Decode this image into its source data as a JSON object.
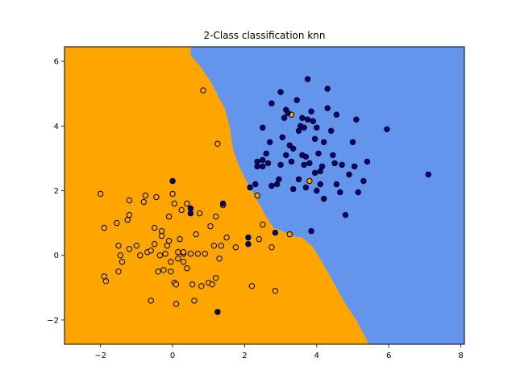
{
  "chart_data": {
    "type": "scatter",
    "title": "2-Class classification knn",
    "xlabel": "",
    "ylabel": "",
    "xlim": [
      -3.0,
      8.1
    ],
    "ylim": [
      -2.75,
      6.45
    ],
    "xticks": [
      -2,
      0,
      2,
      4,
      6,
      8
    ],
    "yticks": [
      -2,
      0,
      2,
      4,
      6
    ],
    "xtick_labels": [
      "−2",
      "0",
      "2",
      "4",
      "6",
      "8"
    ],
    "ytick_labels": [
      "−2",
      "0",
      "2",
      "4",
      "6"
    ],
    "grid": false,
    "legend": "none",
    "colors": {
      "region_class_0": "#ffa500",
      "region_class_1": "#6495ed",
      "point_class_0": "#ffa500",
      "point_class_1": "#00008b",
      "marker_edge": "#000000"
    },
    "decision_boundary": [
      [
        -1.7,
        6.45
      ],
      [
        0.5,
        6.45
      ],
      [
        0.5,
        6.2
      ],
      [
        0.8,
        5.8
      ],
      [
        1.1,
        5.3
      ],
      [
        1.3,
        4.85
      ],
      [
        1.45,
        4.55
      ],
      [
        1.6,
        3.9
      ],
      [
        1.65,
        3.45
      ],
      [
        1.7,
        3.2
      ],
      [
        1.85,
        2.75
      ],
      [
        2.0,
        2.4
      ],
      [
        2.2,
        2.0
      ],
      [
        2.4,
        1.6
      ],
      [
        2.6,
        1.2
      ],
      [
        2.8,
        0.85
      ],
      [
        3.05,
        0.75
      ],
      [
        3.3,
        0.6
      ],
      [
        3.6,
        0.55
      ],
      [
        3.9,
        0.25
      ],
      [
        4.2,
        -0.3
      ],
      [
        4.5,
        -0.9
      ],
      [
        4.8,
        -1.5
      ],
      [
        5.1,
        -2.0
      ],
      [
        5.45,
        -2.75
      ],
      [
        -3.0,
        -2.75
      ],
      [
        -3.0,
        6.45
      ]
    ],
    "series": [
      {
        "class": 0,
        "points": [
          [
            -2.0,
            1.9
          ],
          [
            -1.9,
            0.85
          ],
          [
            -1.9,
            -0.65
          ],
          [
            -1.85,
            -0.8
          ],
          [
            -1.55,
            1.0
          ],
          [
            -1.5,
            0.3
          ],
          [
            -1.45,
            0.0
          ],
          [
            -1.4,
            -0.2
          ],
          [
            -1.5,
            -0.5
          ],
          [
            -1.25,
            1.1
          ],
          [
            -1.2,
            1.25
          ],
          [
            -1.2,
            0.2
          ],
          [
            -1.2,
            1.7
          ],
          [
            -1.0,
            0.3
          ],
          [
            -0.9,
            0.0
          ],
          [
            -0.8,
            1.65
          ],
          [
            -0.75,
            1.85
          ],
          [
            -0.7,
            0.1
          ],
          [
            -0.6,
            0.15
          ],
          [
            -0.6,
            -1.4
          ],
          [
            -0.5,
            0.35
          ],
          [
            -0.5,
            0.85
          ],
          [
            -0.45,
            1.8
          ],
          [
            -0.4,
            -0.5
          ],
          [
            -0.35,
            0.0
          ],
          [
            -0.3,
            0.75
          ],
          [
            -0.3,
            0.6
          ],
          [
            -0.25,
            -0.45
          ],
          [
            -0.2,
            0.05
          ],
          [
            -0.1,
            1.2
          ],
          [
            -0.1,
            0.45
          ],
          [
            -0.05,
            -0.2
          ],
          [
            -0.05,
            -0.5
          ],
          [
            0.0,
            1.9
          ],
          [
            0.05,
            1.6
          ],
          [
            0.05,
            -0.85
          ],
          [
            0.1,
            -0.9
          ],
          [
            0.1,
            -1.5
          ],
          [
            0.15,
            0.1
          ],
          [
            0.15,
            -0.1
          ],
          [
            0.2,
            0.5
          ],
          [
            0.25,
            1.4
          ],
          [
            0.3,
            -0.2
          ],
          [
            0.3,
            0.05
          ],
          [
            0.4,
            1.6
          ],
          [
            0.4,
            -0.4
          ],
          [
            0.5,
            0.05
          ],
          [
            0.55,
            -0.9
          ],
          [
            0.6,
            -1.4
          ],
          [
            0.65,
            0.65
          ],
          [
            0.7,
            0.05
          ],
          [
            0.75,
            1.3
          ],
          [
            0.8,
            -0.95
          ],
          [
            0.85,
            5.1
          ],
          [
            0.9,
            0.05
          ],
          [
            1.0,
            -0.85
          ],
          [
            1.05,
            0.9
          ],
          [
            1.1,
            -0.9
          ],
          [
            1.15,
            0.3
          ],
          [
            1.2,
            1.2
          ],
          [
            1.2,
            -0.7
          ],
          [
            1.25,
            3.45
          ],
          [
            1.3,
            -0.1
          ],
          [
            1.35,
            0.3
          ],
          [
            1.4,
            1.55
          ],
          [
            1.5,
            0.55
          ],
          [
            1.75,
            0.25
          ],
          [
            2.2,
            -0.95
          ],
          [
            2.35,
            1.85
          ],
          [
            2.4,
            0.5
          ],
          [
            2.5,
            0.95
          ],
          [
            2.75,
            0.25
          ],
          [
            2.85,
            -1.1
          ],
          [
            3.25,
            0.65
          ],
          [
            3.3,
            4.35
          ],
          [
            3.8,
            2.3
          ],
          [
            0.3,
            0.1
          ],
          [
            -0.15,
            0.3
          ]
        ]
      },
      {
        "class": 1,
        "points": [
          [
            0.0,
            2.3
          ],
          [
            0.5,
            1.45
          ],
          [
            0.5,
            1.3
          ],
          [
            1.4,
            1.6
          ],
          [
            1.25,
            -1.75
          ],
          [
            2.1,
            0.55
          ],
          [
            2.1,
            0.35
          ],
          [
            2.15,
            2.1
          ],
          [
            2.3,
            2.2
          ],
          [
            2.35,
            2.9
          ],
          [
            2.35,
            2.75
          ],
          [
            2.5,
            2.95
          ],
          [
            2.5,
            2.75
          ],
          [
            2.5,
            3.95
          ],
          [
            2.6,
            3.15
          ],
          [
            2.65,
            2.85
          ],
          [
            2.7,
            3.5
          ],
          [
            2.75,
            4.7
          ],
          [
            2.75,
            2.15
          ],
          [
            2.85,
            0.7
          ],
          [
            2.9,
            2.2
          ],
          [
            2.95,
            2.35
          ],
          [
            3.0,
            2.8
          ],
          [
            3.0,
            5.05
          ],
          [
            3.05,
            3.65
          ],
          [
            3.1,
            4.25
          ],
          [
            3.15,
            4.5
          ],
          [
            3.15,
            3.1
          ],
          [
            3.2,
            4.4
          ],
          [
            3.25,
            3.4
          ],
          [
            3.3,
            2.9
          ],
          [
            3.35,
            3.3
          ],
          [
            3.35,
            2.05
          ],
          [
            3.45,
            4.8
          ],
          [
            3.5,
            3.85
          ],
          [
            3.5,
            2.35
          ],
          [
            3.55,
            4.0
          ],
          [
            3.6,
            3.1
          ],
          [
            3.6,
            4.25
          ],
          [
            3.65,
            2.8
          ],
          [
            3.65,
            3.95
          ],
          [
            3.7,
            3.05
          ],
          [
            3.7,
            2.1
          ],
          [
            3.75,
            5.45
          ],
          [
            3.75,
            4.2
          ],
          [
            3.8,
            2.85
          ],
          [
            3.85,
            4.45
          ],
          [
            3.85,
            0.75
          ],
          [
            3.9,
            4.15
          ],
          [
            3.95,
            3.6
          ],
          [
            3.95,
            2.55
          ],
          [
            4.0,
            3.95
          ],
          [
            4.0,
            2.0
          ],
          [
            4.05,
            3.15
          ],
          [
            4.1,
            2.6
          ],
          [
            4.1,
            2.2
          ],
          [
            4.15,
            2.75
          ],
          [
            4.2,
            3.5
          ],
          [
            4.2,
            1.75
          ],
          [
            4.3,
            4.55
          ],
          [
            4.3,
            5.15
          ],
          [
            4.4,
            3.85
          ],
          [
            4.45,
            3.1
          ],
          [
            4.5,
            2.85
          ],
          [
            4.55,
            2.2
          ],
          [
            4.55,
            4.35
          ],
          [
            4.65,
            1.95
          ],
          [
            4.7,
            2.8
          ],
          [
            4.8,
            1.25
          ],
          [
            4.9,
            2.5
          ],
          [
            5.0,
            3.5
          ],
          [
            5.05,
            2.75
          ],
          [
            5.1,
            4.2
          ],
          [
            5.15,
            1.95
          ],
          [
            5.3,
            2.3
          ],
          [
            5.4,
            2.9
          ],
          [
            5.95,
            3.9
          ],
          [
            7.1,
            2.5
          ]
        ]
      }
    ]
  }
}
